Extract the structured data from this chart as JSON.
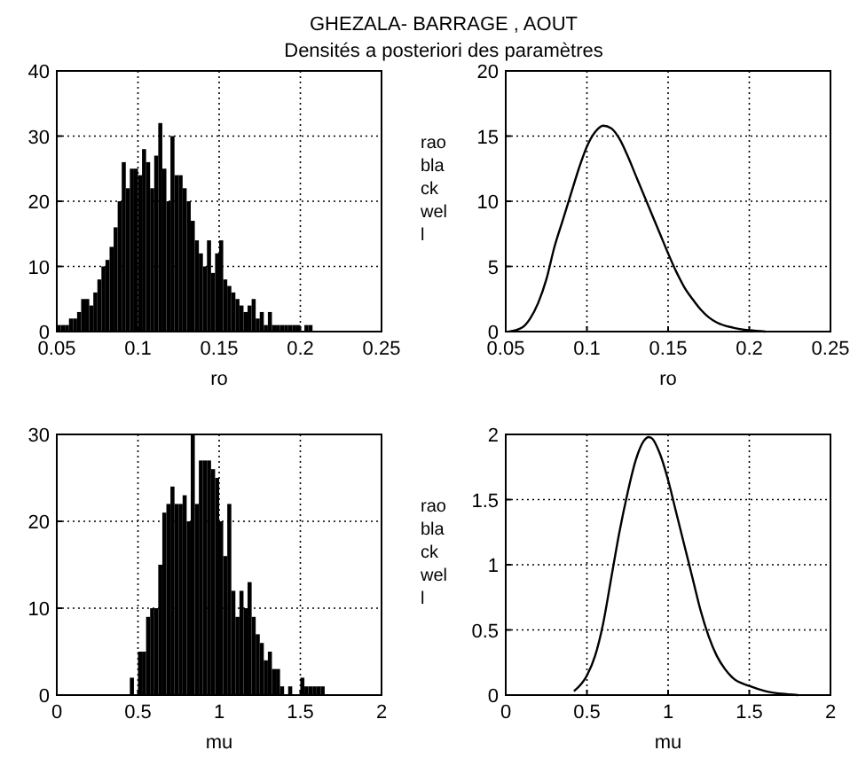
{
  "chart_data": [
    {
      "type": "histogram",
      "title": "GHEZALA- BARRAGE , AOUT",
      "subtitle": "Densités a posteriori des paramètres",
      "xlabel": "ro",
      "color": "#000000",
      "grid": true,
      "bins": [
        0.05,
        0.0525,
        0.055,
        0.0575,
        0.06,
        0.0625,
        0.065,
        0.0675,
        0.07,
        0.0725,
        0.075,
        0.0775,
        0.08,
        0.0825,
        0.085,
        0.0875,
        0.09,
        0.0925,
        0.095,
        0.0975,
        0.1,
        0.1025,
        0.105,
        0.1075,
        0.11,
        0.1125,
        0.115,
        0.1175,
        0.12,
        0.1225,
        0.125,
        0.1275,
        0.13,
        0.1325,
        0.135,
        0.1375,
        0.14,
        0.1425,
        0.145,
        0.1475,
        0.15,
        0.1525,
        0.155,
        0.1575,
        0.16,
        0.1625,
        0.165,
        0.1675,
        0.17,
        0.1725,
        0.175,
        0.1775,
        0.18,
        0.1825,
        0.185,
        0.1875,
        0.19,
        0.1925,
        0.195,
        0.1975,
        0.2,
        0.2025,
        0.205,
        0.2075,
        0.21
      ],
      "values": [
        1,
        1,
        1,
        2,
        2,
        3,
        5,
        5,
        4,
        6,
        8,
        10,
        11,
        13,
        16,
        20,
        26,
        22,
        25,
        25,
        24,
        28,
        26,
        22,
        27,
        32,
        25,
        20,
        30,
        24,
        24,
        22,
        20,
        17,
        14,
        12,
        10,
        14,
        9,
        12,
        14,
        8,
        7,
        6,
        5,
        4,
        3,
        4,
        5,
        2,
        3,
        1,
        3,
        1,
        1,
        1,
        1,
        1,
        1,
        1,
        0,
        1,
        1,
        0
      ],
      "xlim": [
        0.05,
        0.25
      ],
      "xticks": [
        0.05,
        0.1,
        0.15,
        0.2,
        0.25
      ],
      "ylim": [
        0,
        40
      ],
      "yticks": [
        0,
        10,
        20,
        30,
        40
      ]
    },
    {
      "type": "line",
      "xlabel": "ro",
      "ylabel": "rao bla ck wel l",
      "color": "#000000",
      "grid": true,
      "x": [
        0.052,
        0.06,
        0.065,
        0.07,
        0.075,
        0.08,
        0.085,
        0.09,
        0.095,
        0.1,
        0.105,
        0.11,
        0.115,
        0.12,
        0.125,
        0.13,
        0.135,
        0.14,
        0.145,
        0.15,
        0.155,
        0.16,
        0.165,
        0.17,
        0.175,
        0.18,
        0.19,
        0.2,
        0.21
      ],
      "values": [
        0,
        0.3,
        1,
        2.2,
        4,
        6.5,
        8.5,
        10.5,
        12.5,
        14.2,
        15.3,
        15.8,
        15.6,
        14.8,
        13.5,
        12,
        10.5,
        9,
        7.5,
        6,
        4.6,
        3.4,
        2.5,
        1.7,
        1.1,
        0.7,
        0.3,
        0.1,
        0
      ],
      "xlim": [
        0.05,
        0.25
      ],
      "xticks": [
        0.05,
        0.1,
        0.15,
        0.2,
        0.25
      ],
      "ylim": [
        0,
        20
      ],
      "yticks": [
        0,
        5,
        10,
        15,
        20
      ]
    },
    {
      "type": "histogram",
      "xlabel": "mu",
      "color": "#000000",
      "grid": true,
      "bins": [
        0.45,
        0.475,
        0.5,
        0.525,
        0.55,
        0.575,
        0.6,
        0.625,
        0.65,
        0.675,
        0.7,
        0.725,
        0.75,
        0.775,
        0.8,
        0.825,
        0.85,
        0.875,
        0.9,
        0.925,
        0.95,
        0.975,
        1,
        1.025,
        1.05,
        1.075,
        1.1,
        1.125,
        1.15,
        1.175,
        1.2,
        1.225,
        1.25,
        1.275,
        1.3,
        1.325,
        1.35,
        1.375,
        1.4,
        1.425,
        1.45,
        1.475,
        1.5,
        1.525,
        1.55,
        1.575,
        1.6,
        1.625,
        1.65,
        1.675,
        1.7
      ],
      "values": [
        2,
        0,
        5,
        5,
        9,
        10,
        10,
        15,
        21,
        22,
        24,
        22,
        22,
        23,
        20,
        30,
        22,
        27,
        27,
        27,
        26,
        25,
        20,
        16,
        22,
        12,
        9,
        12,
        10,
        13,
        9,
        7,
        6,
        4,
        5,
        3,
        3,
        1,
        0,
        1,
        0,
        0,
        2,
        1,
        1,
        1,
        1,
        1,
        0,
        0
      ],
      "xlim": [
        0,
        2
      ],
      "xticks": [
        0,
        0.5,
        1,
        1.5,
        2
      ],
      "ylim": [
        0,
        30
      ],
      "yticks": [
        0,
        10,
        20,
        30
      ]
    },
    {
      "type": "line",
      "xlabel": "mu",
      "ylabel": "rao bla ck wel l",
      "color": "#000000",
      "grid": true,
      "x": [
        0.42,
        0.5,
        0.55,
        0.6,
        0.65,
        0.7,
        0.75,
        0.8,
        0.85,
        0.88,
        0.9,
        0.95,
        1,
        1.05,
        1.1,
        1.15,
        1.2,
        1.25,
        1.3,
        1.35,
        1.4,
        1.5,
        1.6,
        1.7,
        1.8
      ],
      "values": [
        0.03,
        0.15,
        0.3,
        0.55,
        0.9,
        1.25,
        1.55,
        1.8,
        1.95,
        1.98,
        1.97,
        1.85,
        1.65,
        1.4,
        1.15,
        0.9,
        0.65,
        0.45,
        0.3,
        0.2,
        0.13,
        0.07,
        0.03,
        0.01,
        0
      ],
      "xlim": [
        0,
        2
      ],
      "xticks": [
        0,
        0.5,
        1,
        1.5,
        2
      ],
      "ylim": [
        0,
        2
      ],
      "yticks": [
        0,
        0.5,
        1,
        1.5,
        2
      ]
    }
  ]
}
